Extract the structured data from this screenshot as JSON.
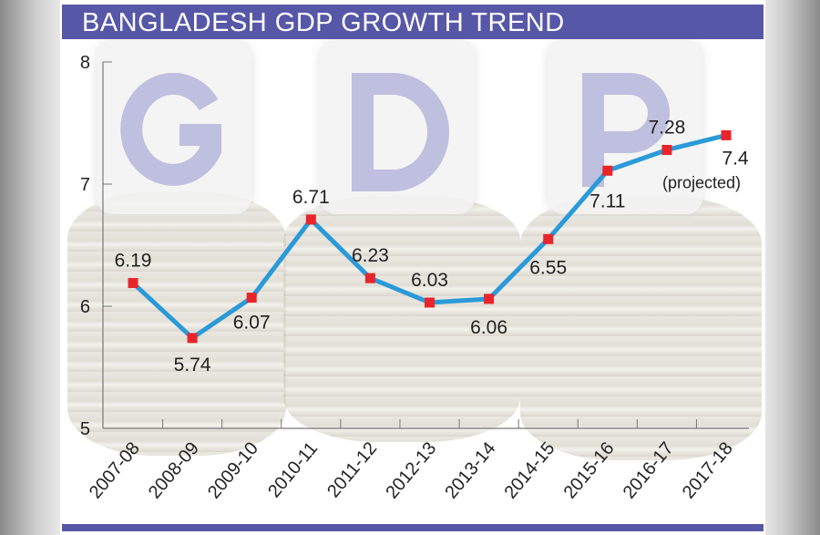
{
  "title": "BANGLADESH GDP GROWTH TREND",
  "background_letters": [
    "G",
    "D",
    "P"
  ],
  "chart_data": {
    "type": "line",
    "title": "BANGLADESH GDP GROWTH TREND",
    "xlabel": "",
    "ylabel": "",
    "categories": [
      "2007-08",
      "2008-09",
      "2009-10",
      "2010-11",
      "2011-12",
      "2012-13",
      "2013-14",
      "2014-15",
      "2015-16",
      "2016-17",
      "2017-18"
    ],
    "values": [
      6.19,
      5.74,
      6.07,
      6.71,
      6.23,
      6.03,
      6.06,
      6.55,
      7.11,
      7.28,
      7.4
    ],
    "value_labels": [
      "6.19",
      "5.74",
      "6.07",
      "6.71",
      "6.23",
      "6.03",
      "6.06",
      "6.55",
      "7.11",
      "7.28",
      "7.4"
    ],
    "annotation": "(projected)",
    "ylim": [
      5,
      8
    ],
    "yticks": [
      "5",
      "6",
      "7",
      "8"
    ],
    "grid": false,
    "line_color": "#2a9ad8",
    "marker_color": "#e8252b"
  }
}
